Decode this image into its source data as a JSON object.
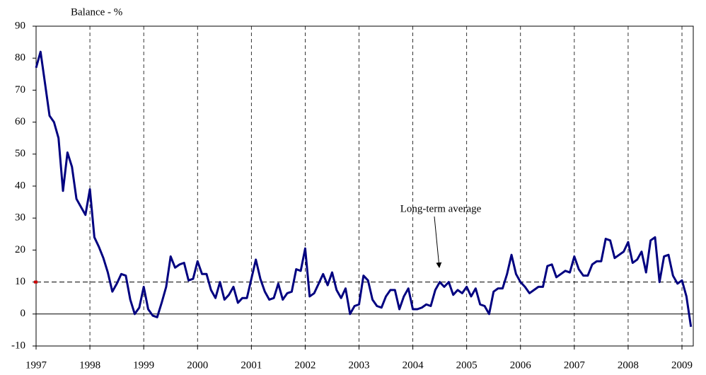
{
  "chart_data": {
    "type": "line",
    "y_label": "Balance - %",
    "annotation": "Long-term average",
    "average": 10,
    "average_marker_color": "#cc0000",
    "x": [
      1997,
      1997.083,
      1997.167,
      1997.25,
      1997.333,
      1997.417,
      1997.5,
      1997.583,
      1997.667,
      1997.75,
      1997.833,
      1997.917,
      1998,
      1998.083,
      1998.167,
      1998.25,
      1998.333,
      1998.417,
      1998.5,
      1998.583,
      1998.667,
      1998.75,
      1998.833,
      1998.917,
      1999,
      1999.083,
      1999.167,
      1999.25,
      1999.333,
      1999.417,
      1999.5,
      1999.583,
      1999.667,
      1999.75,
      1999.833,
      1999.917,
      2000,
      2000.083,
      2000.167,
      2000.25,
      2000.333,
      2000.417,
      2000.5,
      2000.583,
      2000.667,
      2000.75,
      2000.833,
      2000.917,
      2001,
      2001.083,
      2001.167,
      2001.25,
      2001.333,
      2001.417,
      2001.5,
      2001.583,
      2001.667,
      2001.75,
      2001.833,
      2001.917,
      2002,
      2002.083,
      2002.167,
      2002.25,
      2002.333,
      2002.417,
      2002.5,
      2002.583,
      2002.667,
      2002.75,
      2002.833,
      2002.917,
      2003,
      2003.083,
      2003.167,
      2003.25,
      2003.333,
      2003.417,
      2003.5,
      2003.583,
      2003.667,
      2003.75,
      2003.833,
      2003.917,
      2004,
      2004.083,
      2004.167,
      2004.25,
      2004.333,
      2004.417,
      2004.5,
      2004.583,
      2004.667,
      2004.75,
      2004.833,
      2004.917,
      2005,
      2005.083,
      2005.167,
      2005.25,
      2005.333,
      2005.417,
      2005.5,
      2005.583,
      2005.667,
      2005.75,
      2005.833,
      2005.917,
      2006,
      2006.083,
      2006.167,
      2006.25,
      2006.333,
      2006.417,
      2006.5,
      2006.583,
      2006.667,
      2006.75,
      2006.833,
      2006.917,
      2007,
      2007.083,
      2007.167,
      2007.25,
      2007.333,
      2007.417,
      2007.5,
      2007.583,
      2007.667,
      2007.75,
      2007.833,
      2007.917,
      2008,
      2008.083,
      2008.167,
      2008.25,
      2008.333,
      2008.417,
      2008.5,
      2008.583,
      2008.667,
      2008.75,
      2008.833,
      2008.917,
      2009,
      2009.083,
      2009.167
    ],
    "series": [
      {
        "color": "#000080",
        "values": [
          77,
          82,
          72,
          62,
          60,
          55,
          38.5,
          50.5,
          46,
          36,
          33.5,
          31,
          39,
          24,
          21,
          17.5,
          13,
          7,
          9.5,
          12.5,
          12,
          4.5,
          0,
          2,
          8.5,
          1.5,
          -0.5,
          -1,
          3.5,
          8.5,
          18,
          14.5,
          15.5,
          16,
          10.5,
          11,
          16.5,
          12.5,
          12.5,
          7.5,
          5,
          10,
          4.5,
          6,
          8.5,
          3.5,
          5,
          5,
          11,
          17,
          11,
          7,
          4.5,
          5,
          9.5,
          4.5,
          6.5,
          7,
          14,
          13.5,
          20.5,
          5.5,
          6.5,
          9.5,
          12.5,
          9,
          13,
          7.5,
          5,
          8,
          0,
          2.5,
          3,
          12,
          10.5,
          4.5,
          2.5,
          2,
          5.5,
          7.5,
          7.5,
          1.5,
          5.5,
          8,
          1.5,
          1.5,
          2,
          3,
          2.5,
          7.5,
          10,
          8.5,
          10,
          6,
          7.5,
          6.5,
          8.5,
          5.5,
          8,
          3,
          2.5,
          0,
          7,
          8,
          8,
          12.5,
          18.5,
          12.5,
          10,
          8.5,
          6.5,
          7.5,
          8.5,
          8.5,
          15,
          15.5,
          11.5,
          12.5,
          13.5,
          13,
          18,
          14,
          12,
          12,
          15.5,
          16.5,
          16.5,
          23.5,
          23,
          17.5,
          18.5,
          19.5,
          22.5,
          16,
          17,
          19.5,
          13,
          23,
          24,
          10,
          18,
          18.5,
          12,
          9.5,
          10.5,
          5.5,
          -4
        ]
      }
    ],
    "xlim": [
      1997,
      2009.21
    ],
    "xticks": [
      1997,
      1998,
      1999,
      2000,
      2001,
      2002,
      2003,
      2004,
      2005,
      2006,
      2007,
      2008,
      2009
    ],
    "ylim": [
      -10,
      90
    ],
    "yticks": [
      -10,
      0,
      10,
      20,
      30,
      40,
      50,
      60,
      70,
      80,
      90
    ],
    "grid": true
  }
}
